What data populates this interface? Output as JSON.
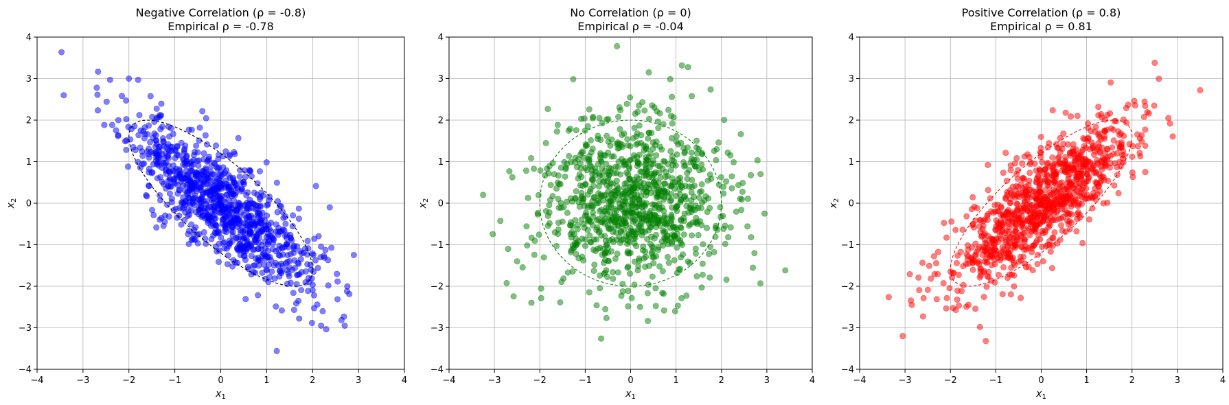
{
  "chart_data": [
    {
      "type": "scatter",
      "title": "Negative Correlation (ρ = -0.8)",
      "subtitle": "Empirical ρ = -0.78",
      "xlabel": "x",
      "xlabel_sub": "1",
      "ylabel": "x",
      "ylabel_sub": "2",
      "xlim": [
        -4,
        4
      ],
      "ylim": [
        -4,
        4
      ],
      "ticks": [
        -4,
        -3,
        -2,
        -1,
        0,
        1,
        2,
        3,
        4
      ],
      "tick_labels": [
        "−4",
        "−3",
        "−2",
        "−1",
        "0",
        "1",
        "2",
        "3",
        "4"
      ],
      "grid": true,
      "color": "#0000ff",
      "ellipse_color": "#000000",
      "rho": -0.8,
      "n_points": 1000,
      "ellipse_radius": 2,
      "seed": 11,
      "x_outliers": [
        [
          -3.42,
          2.6
        ],
        [
          -2.0,
          3.0
        ],
        [
          -1.8,
          2.97
        ],
        [
          1.22,
          -3.56
        ],
        [
          2.7,
          -2.95
        ],
        [
          2.75,
          -2.12
        ],
        [
          -2.7,
          2.78
        ],
        [
          2.22,
          -2.6
        ]
      ]
    },
    {
      "type": "scatter",
      "title": "No Correlation (ρ = 0)",
      "subtitle": "Empirical ρ = -0.04",
      "xlabel": "x",
      "xlabel_sub": "1",
      "ylabel": "x",
      "ylabel_sub": "2",
      "xlim": [
        -4,
        4
      ],
      "ylim": [
        -4,
        4
      ],
      "ticks": [
        -4,
        -3,
        -2,
        -1,
        0,
        1,
        2,
        3,
        4
      ],
      "tick_labels": [
        "−4",
        "−3",
        "−2",
        "−1",
        "0",
        "1",
        "2",
        "3",
        "4"
      ],
      "grid": true,
      "color": "#008000",
      "ellipse_color": "#008000",
      "rho": 0.0,
      "n_points": 1000,
      "ellipse_radius": 2,
      "seed": 23,
      "x_outliers": [
        [
          -0.3,
          3.78
        ],
        [
          -0.65,
          -3.26
        ],
        [
          -3.25,
          0.2
        ],
        [
          2.95,
          -0.25
        ],
        [
          0.98,
          -2.6
        ],
        [
          0.4,
          3.15
        ],
        [
          -2.5,
          -1.4
        ]
      ]
    },
    {
      "type": "scatter",
      "title": "Positive Correlation (ρ = 0.8)",
      "subtitle": "Empirical ρ = 0.81",
      "xlabel": "x",
      "xlabel_sub": "1",
      "ylabel": "x",
      "ylabel_sub": "2",
      "xlim": [
        -4,
        4
      ],
      "ylim": [
        -4,
        4
      ],
      "ticks": [
        -4,
        -3,
        -2,
        -1,
        0,
        1,
        2,
        3,
        4
      ],
      "tick_labels": [
        "−4",
        "−3",
        "−2",
        "−1",
        "0",
        "1",
        "2",
        "3",
        "4"
      ],
      "grid": true,
      "color": "#ff0000",
      "ellipse_color": "#ff0000",
      "rho": 0.8,
      "n_points": 1000,
      "ellipse_radius": 2,
      "seed": 37,
      "x_outliers": [
        [
          3.5,
          2.72
        ],
        [
          2.5,
          3.38
        ],
        [
          -3.05,
          -3.2
        ],
        [
          -1.22,
          -3.32
        ],
        [
          -1.35,
          -2.98
        ],
        [
          -2.85,
          -2.45
        ],
        [
          2.8,
          2.05
        ]
      ]
    }
  ]
}
